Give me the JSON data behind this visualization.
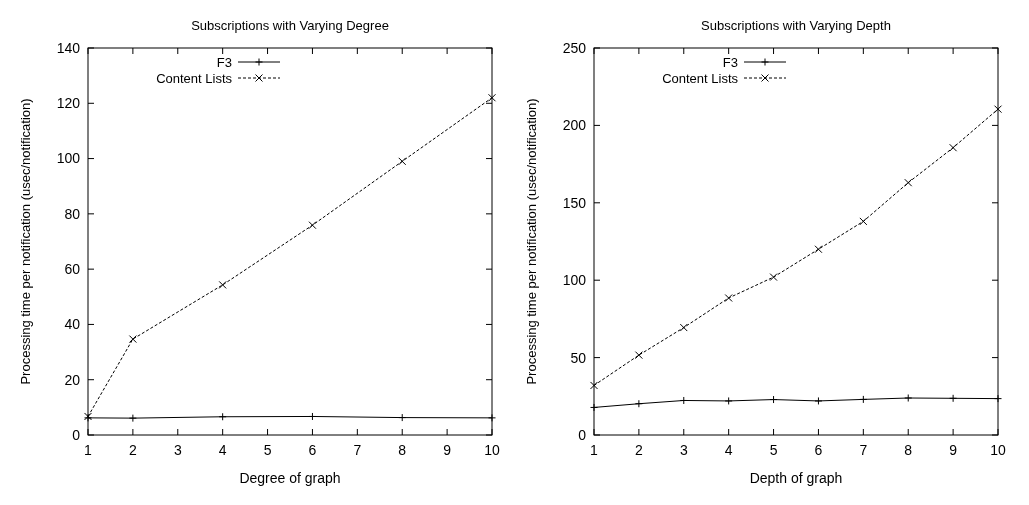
{
  "chart_data": [
    {
      "type": "line",
      "title": "Subscriptions with Varying Degree",
      "xlabel": "Degree of graph",
      "ylabel": "Processing time per notification (usec/notification)",
      "xlim": [
        1,
        10
      ],
      "xticks": [
        1,
        2,
        3,
        4,
        5,
        6,
        7,
        8,
        9,
        10
      ],
      "ylim": [
        0,
        140
      ],
      "yticks": [
        0,
        20,
        40,
        60,
        80,
        100,
        120,
        140
      ],
      "grid": false,
      "legend": "top left",
      "series": [
        {
          "name": "F3",
          "color": "#000000",
          "marker": "cross",
          "line_style": "solid",
          "x": [
            1,
            2,
            4,
            6,
            8,
            10
          ],
          "values": [
            6.2,
            6.1,
            6.6,
            6.7,
            6.3,
            6.2
          ]
        },
        {
          "name": "Content Lists",
          "color": "#000000",
          "marker": "x",
          "line_style": "dashed",
          "x": [
            1,
            2,
            4,
            6,
            8,
            10
          ],
          "values": [
            6.7,
            34.7,
            54.3,
            75.9,
            99,
            122
          ]
        }
      ]
    },
    {
      "type": "line",
      "title": "Subscriptions with Varying Depth",
      "xlabel": "Depth of graph",
      "ylabel": "Processing time per notification (usec/notification)",
      "xlim": [
        1,
        10
      ],
      "xticks": [
        1,
        2,
        3,
        4,
        5,
        6,
        7,
        8,
        9,
        10
      ],
      "ylim": [
        0,
        250
      ],
      "yticks": [
        0,
        50,
        100,
        150,
        200,
        250
      ],
      "grid": false,
      "legend": "top left",
      "series": [
        {
          "name": "F3",
          "color": "#000000",
          "marker": "cross",
          "line_style": "solid",
          "x": [
            1,
            2,
            3,
            4,
            5,
            6,
            7,
            8,
            9,
            10
          ],
          "values": [
            17.8,
            20.2,
            22.3,
            22,
            22.9,
            22,
            23,
            23.9,
            23.7,
            23.5
          ]
        },
        {
          "name": "Content Lists",
          "color": "#000000",
          "marker": "x",
          "line_style": "dashed",
          "x": [
            1,
            2,
            3,
            4,
            5,
            6,
            7,
            8,
            9,
            10
          ],
          "values": [
            32,
            51.6,
            69.4,
            88.5,
            102,
            120,
            138,
            163,
            185.6,
            210.5
          ]
        }
      ]
    }
  ]
}
